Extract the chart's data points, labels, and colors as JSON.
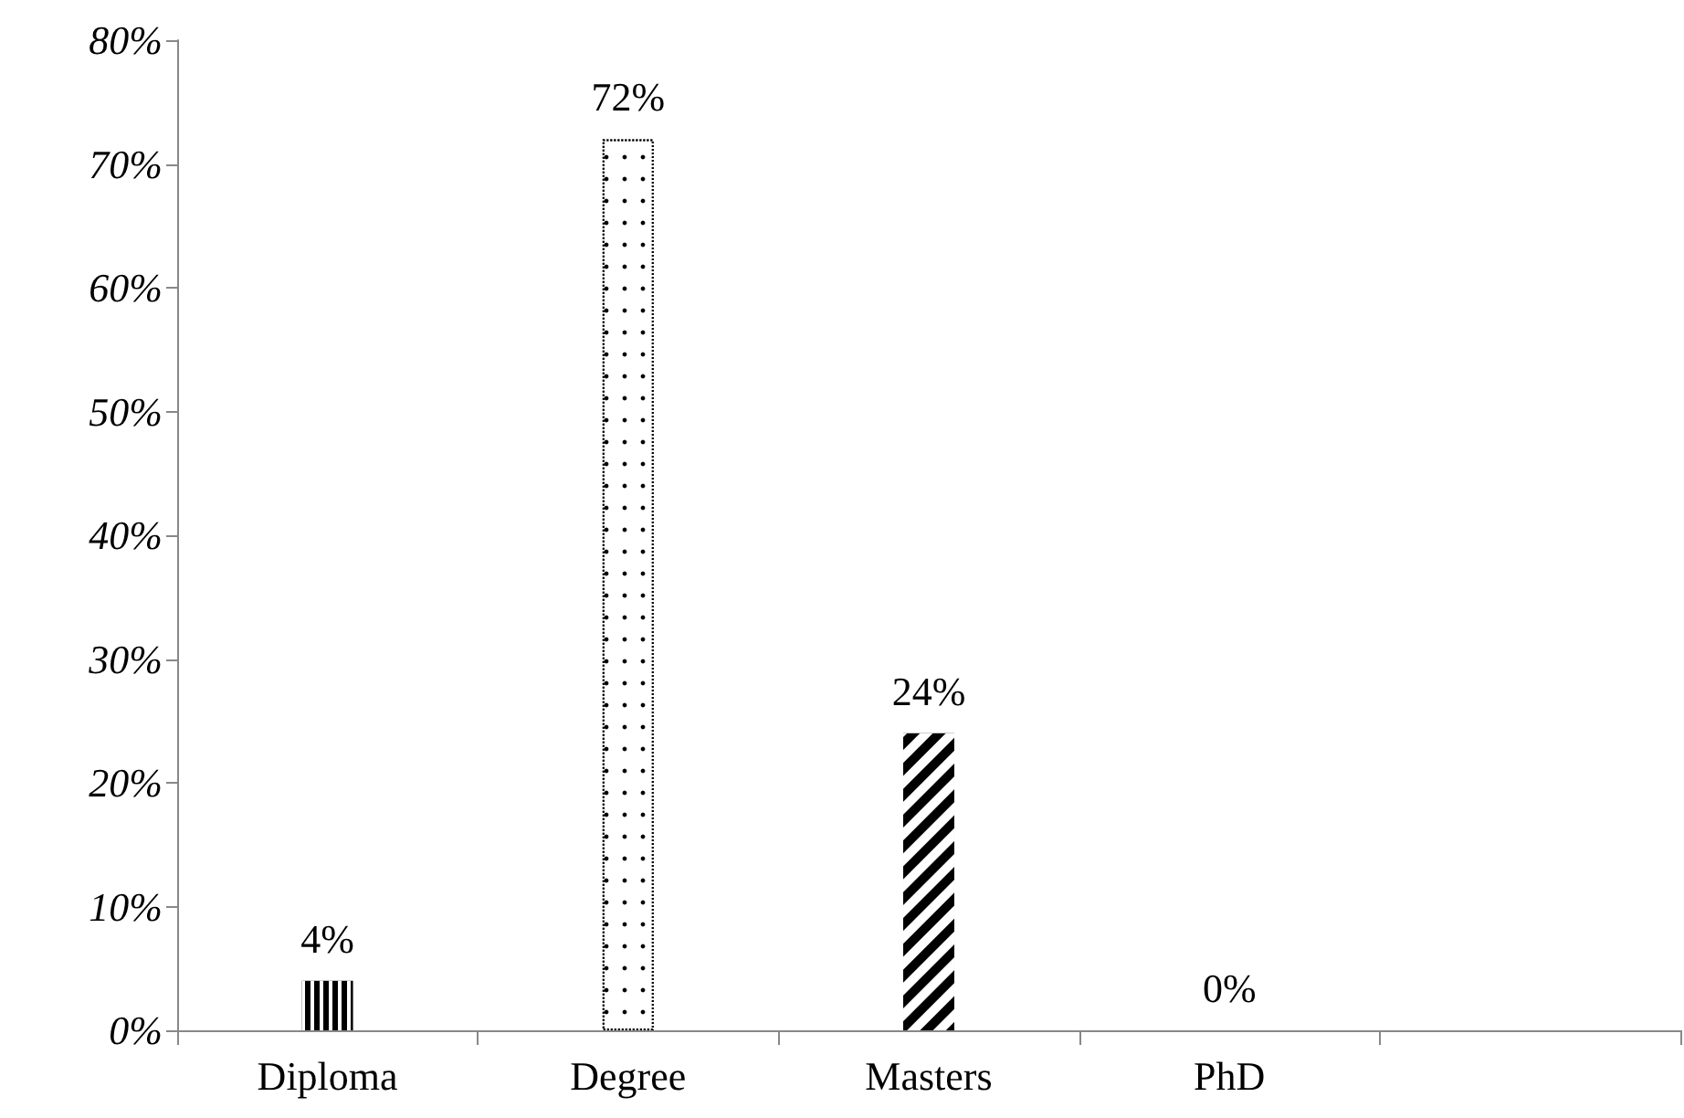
{
  "chart_data": {
    "type": "bar",
    "categories": [
      "Diploma",
      "Degree",
      "Masters",
      "PhD",
      null
    ],
    "values": [
      4,
      72,
      24,
      0,
      null
    ],
    "colors": [
      "#000000",
      "#ffffff",
      "#000000",
      "#000000",
      "#000000"
    ],
    "value_labels": [
      "4%",
      "72%",
      "24%",
      "0%",
      null
    ],
    "ylim": [
      0,
      80
    ],
    "yticks": [
      {
        "value": 0,
        "label": "0%"
      },
      {
        "value": 10,
        "label": "10%"
      },
      {
        "value": 20,
        "label": "20%"
      },
      {
        "value": 30,
        "label": "30%"
      },
      {
        "value": 40,
        "label": "40%"
      },
      {
        "value": 50,
        "label": "50%"
      },
      {
        "value": 60,
        "label": "60%"
      },
      {
        "value": 70,
        "label": "70%"
      },
      {
        "value": 80,
        "label": "80%"
      }
    ],
    "grid": false
  }
}
